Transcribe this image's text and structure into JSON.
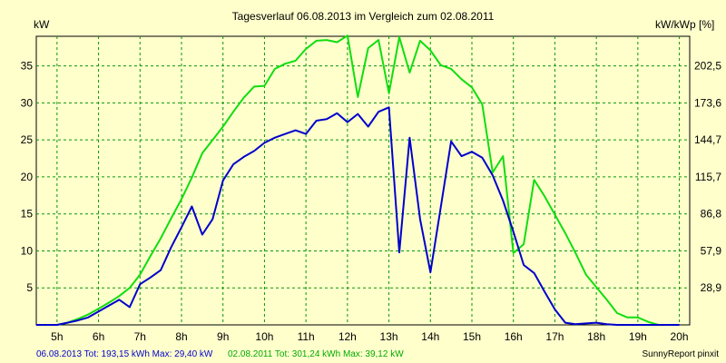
{
  "chart_data": {
    "type": "line",
    "title": "Tagesverlauf 06.08.2013 im Vergleich zum 02.08.2011",
    "ylabel_left": "kW",
    "ylabel_right": "kW/kWp [%]",
    "x_ticks": [
      "5h",
      "6h",
      "7h",
      "8h",
      "9h",
      "10h",
      "11h",
      "12h",
      "13h",
      "14h",
      "15h",
      "16h",
      "17h",
      "18h",
      "19h",
      "20h"
    ],
    "x_range": [
      4.5,
      20.25
    ],
    "y_ticks_left": [
      "5",
      "10",
      "15",
      "20",
      "25",
      "30",
      "35"
    ],
    "y_ticks_right": [
      "28,9",
      "57,9",
      "86,8",
      "115,7",
      "144,7",
      "173,6",
      "202,5"
    ],
    "ylim": [
      0,
      39
    ],
    "grid": true,
    "grid_color": "#0a960a",
    "footer_left": "06.08.2013 Tot: 193,15 kWh Max: 29,40 kW",
    "footer_mid": "02.08.2011 Tot: 301,24 kWh Max: 39,12 kW",
    "footer_right": "SunnyReport pinxit",
    "series": [
      {
        "name": "06.08.2013",
        "color": "#0000cc",
        "x": [
          4.5,
          5,
          5.25,
          5.5,
          5.75,
          6,
          6.25,
          6.5,
          6.75,
          7,
          7.25,
          7.5,
          7.75,
          8,
          8.25,
          8.5,
          8.75,
          9,
          9.25,
          9.5,
          9.75,
          10,
          10.25,
          10.5,
          10.75,
          11,
          11.25,
          11.5,
          11.75,
          12,
          12.25,
          12.5,
          12.75,
          13,
          13.25,
          13.5,
          13.75,
          14,
          14.25,
          14.5,
          14.75,
          15,
          15.25,
          15.5,
          15.75,
          16,
          16.25,
          16.5,
          16.75,
          17,
          17.25,
          17.5,
          17.75,
          18,
          18.25,
          18.5,
          18.75,
          19,
          19.25,
          19.5,
          19.75,
          20
        ],
        "values": [
          0,
          0,
          0.3,
          0.6,
          1,
          1.8,
          2.6,
          3.4,
          2.4,
          5.5,
          6.4,
          7.4,
          10.5,
          13.2,
          16,
          12.2,
          14.3,
          19.5,
          21.7,
          22.7,
          23.5,
          24.6,
          25.3,
          25.8,
          26.3,
          25.8,
          27.6,
          27.8,
          28.6,
          27.4,
          28.5,
          26.8,
          28.8,
          29.4,
          9.8,
          25.3,
          14.3,
          7.1,
          15.9,
          24.8,
          22.8,
          23.4,
          22.6,
          20.2,
          16.8,
          12.6,
          8.1,
          7,
          4.5,
          2.1,
          0.3,
          0.1,
          0.2,
          0.3,
          0.1,
          0,
          0,
          0,
          0,
          0,
          0,
          0
        ]
      },
      {
        "name": "02.08.2011",
        "color": "#11dd11",
        "x": [
          4.5,
          5,
          5.25,
          5.5,
          5.75,
          6,
          6.25,
          6.5,
          6.75,
          7,
          7.25,
          7.5,
          7.75,
          8,
          8.25,
          8.5,
          8.75,
          9,
          9.25,
          9.5,
          9.75,
          10,
          10.25,
          10.5,
          10.75,
          11,
          11.25,
          11.5,
          11.75,
          12,
          12.25,
          12.5,
          12.75,
          13,
          13.25,
          13.5,
          13.75,
          14,
          14.25,
          14.5,
          14.75,
          15,
          15.25,
          15.5,
          15.75,
          16,
          16.25,
          16.5,
          16.75,
          17,
          17.25,
          17.5,
          17.75,
          18,
          18.25,
          18.5,
          18.75,
          19,
          19.25,
          19.5,
          19.75,
          20
        ],
        "values": [
          0,
          0,
          0.3,
          0.8,
          1.4,
          2.2,
          3,
          3.9,
          5,
          6.8,
          9.3,
          11.7,
          14.4,
          17,
          19.9,
          23.2,
          25,
          26.8,
          28.8,
          30.7,
          32.2,
          32.3,
          34.6,
          35.3,
          35.7,
          37.3,
          38.4,
          38.5,
          38.2,
          39.1,
          30.8,
          37.4,
          38.5,
          31.3,
          38.9,
          34.1,
          38.4,
          37.1,
          35.1,
          34.6,
          33.2,
          32.1,
          29.8,
          20.6,
          22.8,
          9.7,
          10.9,
          19.6,
          17.4,
          14.9,
          12.4,
          9.7,
          6.8,
          5.1,
          3.4,
          1.6,
          1,
          1,
          0.4,
          0,
          0,
          0
        ]
      }
    ]
  }
}
